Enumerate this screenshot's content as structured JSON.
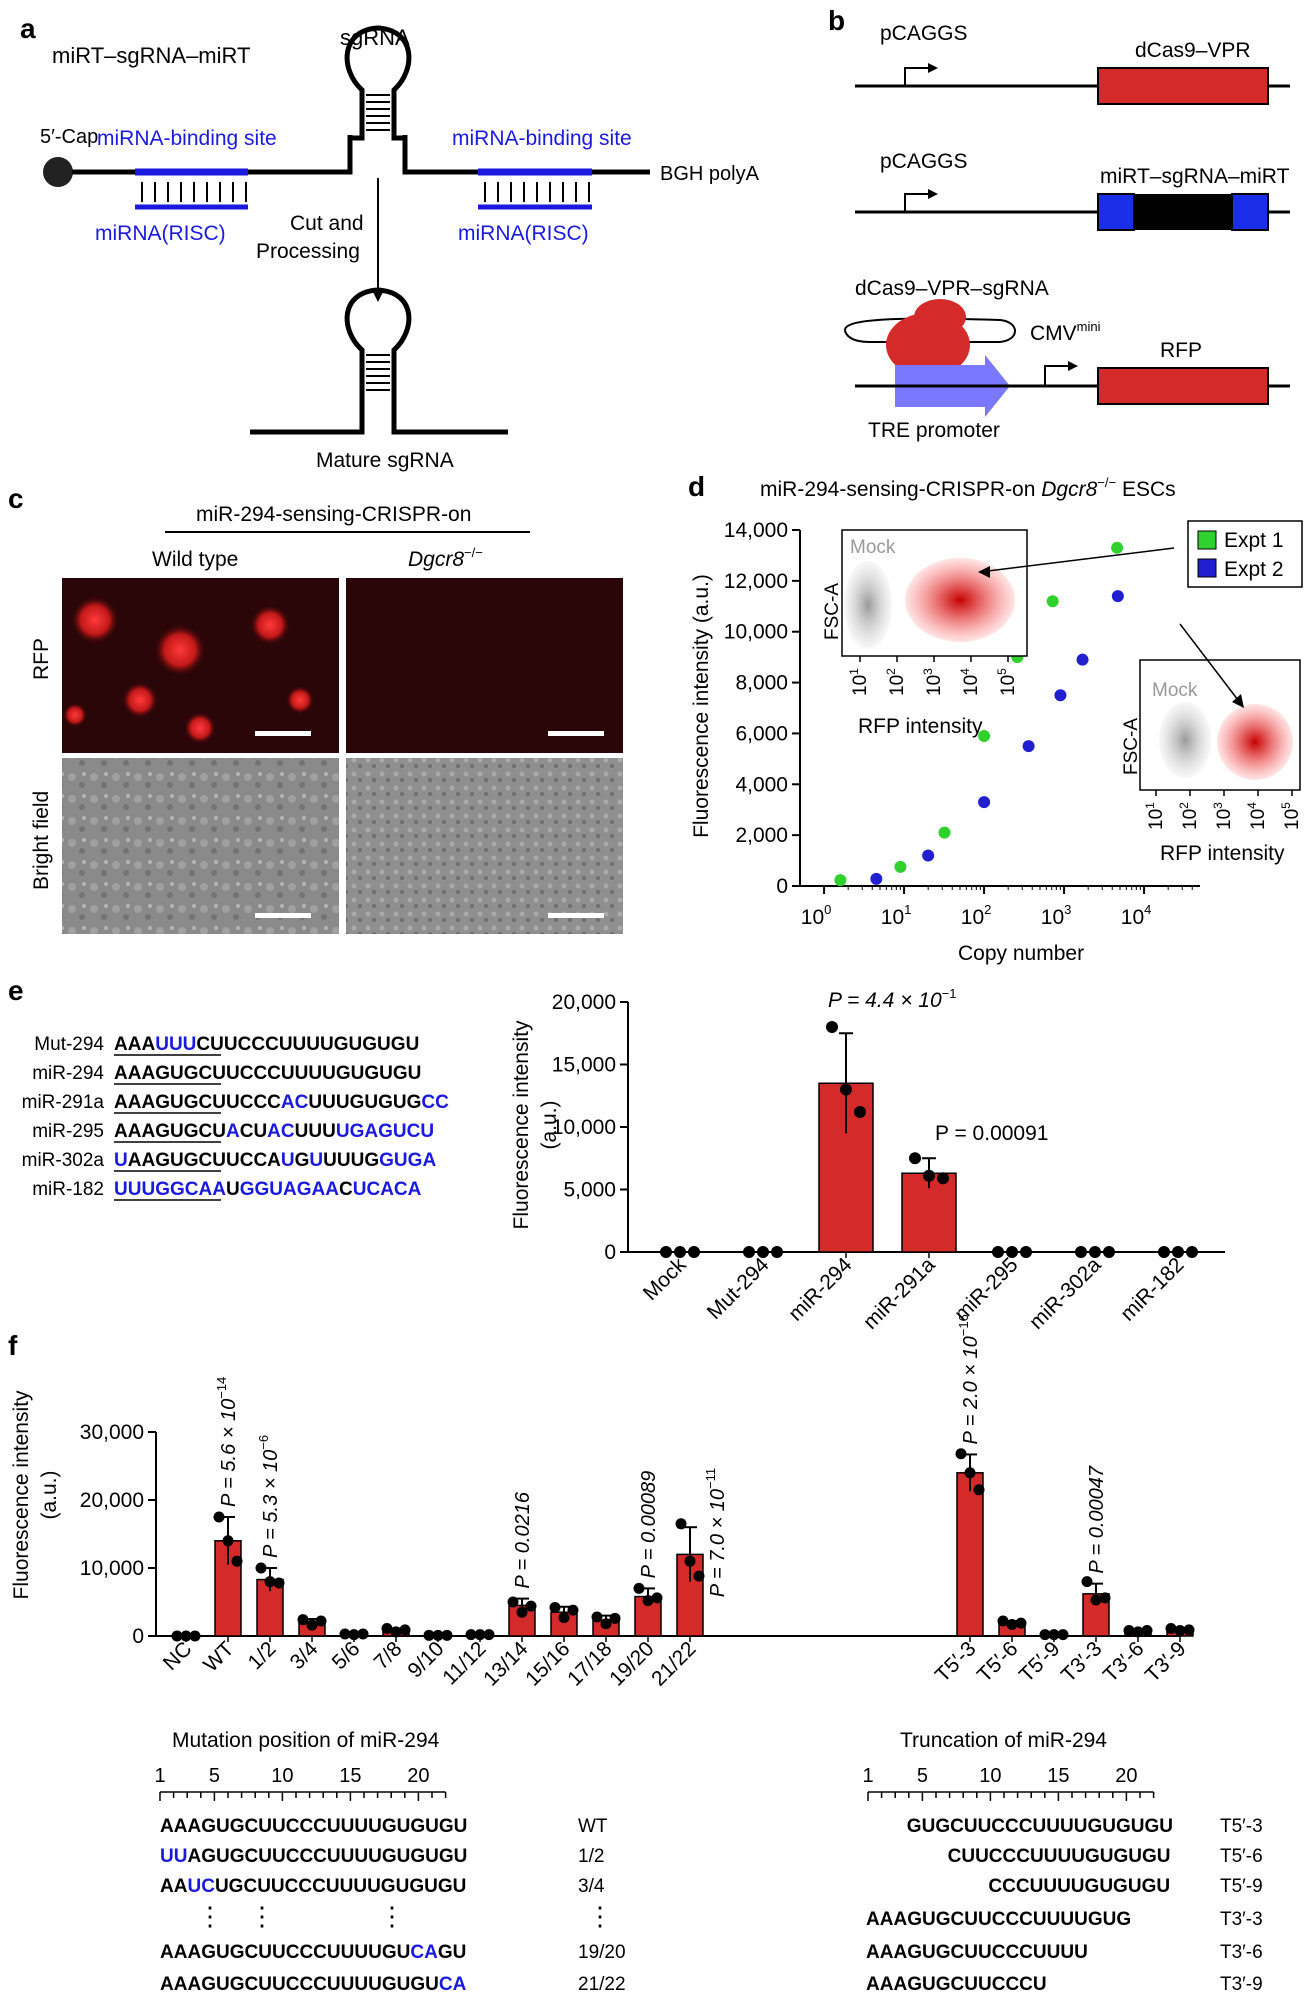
{
  "panel_labels": {
    "a": "a",
    "b": "b",
    "c": "c",
    "d": "d",
    "e": "e",
    "f": "f"
  },
  "panel_a": {
    "title": "miRT–sgRNA–miRT",
    "sgrna": "sgRNA",
    "cap": "5′-Cap",
    "site_left": "miRNA-binding site",
    "site_right": "miRNA-binding site",
    "risc_left": "miRNA(RISC)",
    "risc_right": "miRNA(RISC)",
    "polyA": "BGH polyA",
    "cut1": "Cut and",
    "cut2": "Processing",
    "mature": "Mature sgRNA",
    "colors": {
      "blue": "#1a1adf"
    }
  },
  "panel_b": {
    "p1": "pCAGGS",
    "g1": "dCas9–VPR",
    "p2": "pCAGGS",
    "g2": "miRT–sgRNA–miRT",
    "complex": "dCas9–VPR–sgRNA",
    "cmv": "CMV",
    "cmv_sup": "mini",
    "rfp": "RFP",
    "tre": "TRE promoter",
    "colors": {
      "red": "#d42a2a",
      "blue": "#1b2ee8",
      "lavender": "#7a78ff"
    }
  },
  "panel_c": {
    "header": "miR-294-sensing-CRISPR-on",
    "col1": "Wild type",
    "col2": "Dgcr8",
    "col2_sup": "−/−",
    "row1": "RFP",
    "row2": "Bright field"
  },
  "panel_d": {
    "title": "miR-294-sensing-CRISPR-on",
    "title_gene": "Dgcr8",
    "title_sup": "−/−",
    "title_tail": "ESCs",
    "ylabel": "Fluorescence intensity (a.u.)",
    "xlabel": "Copy number",
    "legend1": "Expt 1",
    "legend2": "Expt 2",
    "inset_mock": "Mock",
    "inset_ylabel": "FSC-A",
    "inset_xlabel": "RFP intensity",
    "yticks": [
      "0",
      "2,000",
      "4,000",
      "6,000",
      "8,000",
      "10,000",
      "12,000",
      "14,000"
    ],
    "xticks": [
      "10",
      "10",
      "10",
      "10",
      "10"
    ],
    "xtick_exp": [
      "0",
      "1",
      "2",
      "3",
      "4"
    ],
    "inset_ticks": [
      "10",
      "10",
      "10",
      "10",
      "10"
    ],
    "inset_exp": [
      "1",
      "2",
      "3",
      "4",
      "5"
    ]
  },
  "panel_e": {
    "ylabel1": "Fluorescence intensity",
    "ylabel2": "(a.u.)",
    "yticks": [
      "0",
      "5,000",
      "10,000",
      "15,000",
      "20,000"
    ],
    "p1": "P = 4.4 × 10",
    "p1_exp": "−1",
    "p2": "P = 0.00091",
    "categories": [
      "Mock",
      "Mut-294",
      "miR-294",
      "miR-291a",
      "miR-295",
      "miR-302a",
      "miR-182"
    ],
    "seq_names": [
      "Mut-294",
      "miR-294",
      "miR-291a",
      "miR-295",
      "miR-302a",
      "miR-182"
    ],
    "seqs": [
      [
        "AAAUUUCUUCCCUUUUGUGUGU",
        "1110001111111111111111"
      ],
      [
        "AAAGUGCUUCCCUUUUGUGUGU",
        "1111111111111111111111"
      ],
      [
        "AAAGUGCUUCCCACUUUGUGUGCC",
        "111111111111001111111100"
      ],
      [
        "AAAGUGCUACUACUUUUGAGUCU",
        "11111111011001110000000"
      ],
      [
        "UAAGUGCUUCCAUGUUUUGGUGA",
        "01111111111101011110000"
      ],
      [
        "UUUGGCAAUGGUAGAACUCACA",
        "0000000010000000100000"
      ]
    ]
  },
  "panel_f": {
    "ylabel1": "Fluorescence intensity",
    "ylabel2": "(a.u.)",
    "yticks": [
      "0",
      "10,000",
      "20,000",
      "30,000"
    ],
    "categories": [
      "NC",
      "WT",
      "1/2",
      "3/4",
      "5/6",
      "7/8",
      "9/10",
      "11/12",
      "13/14",
      "15/16",
      "17/18",
      "19/20",
      "21/22",
      "T5′-3",
      "T5′-6",
      "T5′-9",
      "T3′-3",
      "T3′-6",
      "T3′-9"
    ],
    "pvals": [
      {
        "cat": "WT",
        "text": "P = 5.6 × 10",
        "exp": "−14"
      },
      {
        "cat": "1/2",
        "text": "P = 5.3 × 10",
        "exp": "−6"
      },
      {
        "cat": "13/14",
        "text": "P = 0.0216",
        "exp": ""
      },
      {
        "cat": "19/20",
        "text": "P = 0.00089",
        "exp": ""
      },
      {
        "cat": "21/22",
        "text": "P = 7.0 × 10",
        "exp": "−11"
      },
      {
        "cat": "T5′-3",
        "text": "P = 2.0 × 10",
        "exp": "−16"
      },
      {
        "cat": "T3′-3",
        "text": "P = 0.00047",
        "exp": ""
      }
    ],
    "mut_title": "Mutation position of miR-294",
    "trunc_title": "Truncation of miR-294",
    "ruler_labels": [
      "1",
      "5",
      "10",
      "15",
      "20"
    ],
    "mut_rows": [
      {
        "seq": "AAAGUGCUUCCCUUUUGUGUGU",
        "mask": "1111111111111111111111",
        "label": "WT"
      },
      {
        "seq": "UUAGUGCUUCCCUUUUGUGUGU",
        "mask": "0011111111111111111111",
        "label": "1/2"
      },
      {
        "seq": "AAUCUGCUUCCCUUUUGUGUGU",
        "mask": "1100111111111111111111",
        "label": "3/4"
      },
      {
        "seq": "AAAGUGCUUCCCUUUUGUCAGU",
        "mask": "1111111111111111110011",
        "label": "19/20"
      },
      {
        "seq": "AAAGUGCUUCCCUUUUGUGUCA",
        "mask": "1111111111111111111100",
        "label": "21/22"
      }
    ],
    "trunc_rows": [
      {
        "seq": "GUGCUUCCCUUUUGUGUGU",
        "offset": 3,
        "label": "T5′-3"
      },
      {
        "seq": "CUUCCCUUUUGUGUGU",
        "offset": 6,
        "label": "T5′-6"
      },
      {
        "seq": "CCCUUUUGUGUGU",
        "offset": 9,
        "label": "T5′-9"
      },
      {
        "seq": "AAAGUGCUUCCCUUUUGUG",
        "offset": 0,
        "label": "T3′-3"
      },
      {
        "seq": "AAAGUGCUUCCCUUUU",
        "offset": 0,
        "label": "T3′-6"
      },
      {
        "seq": "AAAGUGCUUCCCU",
        "offset": 0,
        "label": "T3′-9"
      }
    ],
    "ellipsis": "⋮"
  },
  "chart_data": [
    {
      "type": "scatter",
      "title": "miR-294-sensing-CRISPR-on Dgcr8−/− ESCs",
      "xlabel": "Copy number",
      "ylabel": "Fluorescence intensity (a.u.)",
      "xscale": "log",
      "xlim": [
        0.5,
        50000
      ],
      "ylim": [
        0,
        14000
      ],
      "legend": "top-right",
      "series": [
        {
          "name": "Expt 1",
          "color": "#2fd12f",
          "points": [
            [
              1.6,
              230
            ],
            [
              9,
              750
            ],
            [
              32,
              2100
            ],
            [
              100,
              5900
            ],
            [
              260,
              9000
            ],
            [
              720,
              11200
            ],
            [
              4600,
              13300
            ]
          ]
        },
        {
          "name": "Expt 2",
          "color": "#2020d0",
          "points": [
            [
              4.5,
              280
            ],
            [
              20,
              1200
            ],
            [
              100,
              3300
            ],
            [
              360,
              5500
            ],
            [
              900,
              7500
            ],
            [
              1700,
              8900
            ],
            [
              4700,
              11400
            ]
          ]
        }
      ]
    },
    {
      "type": "bar",
      "ylabel": "Fluorescence intensity (a.u.)",
      "ylim": [
        0,
        20000
      ],
      "categories": [
        "Mock",
        "Mut-294",
        "miR-294",
        "miR-291a",
        "miR-295",
        "miR-302a",
        "miR-182"
      ],
      "values": [
        0,
        0,
        13500,
        6300,
        0,
        0,
        0
      ],
      "errors": [
        0,
        0,
        4000,
        1200,
        0,
        0,
        0
      ],
      "points": [
        [
          0,
          0,
          0
        ],
        [
          0,
          0,
          0
        ],
        [
          18000,
          13000,
          11200
        ],
        [
          7500,
          6100,
          5900
        ],
        [
          0,
          0,
          0
        ],
        [
          0,
          0,
          0
        ],
        [
          0,
          0,
          0
        ]
      ]
    },
    {
      "type": "bar",
      "ylabel": "Fluorescence intensity (a.u.)",
      "ylim": [
        0,
        30000
      ],
      "categories": [
        "NC",
        "WT",
        "1/2",
        "3/4",
        "5/6",
        "7/8",
        "9/10",
        "11/12",
        "13/14",
        "15/16",
        "17/18",
        "19/20",
        "21/22",
        "T5′-3",
        "T5′-6",
        "T5′-9",
        "T3′-3",
        "T3′-6",
        "T3′-9"
      ],
      "values": [
        0,
        14000,
        8300,
        2000,
        300,
        800,
        100,
        200,
        4500,
        3500,
        2300,
        5800,
        12000,
        24000,
        1900,
        200,
        6200,
        700,
        900
      ],
      "errors": [
        0,
        3500,
        1700,
        500,
        100,
        300,
        50,
        100,
        1000,
        800,
        700,
        1200,
        4000,
        2700,
        300,
        100,
        1500,
        200,
        200
      ],
      "points": [
        [
          0,
          0,
          0
        ],
        [
          17500,
          14000,
          11000
        ],
        [
          10000,
          8000,
          7800
        ],
        [
          2400,
          1600,
          2200
        ],
        [
          300,
          200,
          300
        ],
        [
          1100,
          600,
          900
        ],
        [
          100,
          100,
          100
        ],
        [
          200,
          200,
          200
        ],
        [
          5000,
          3500,
          4400
        ],
        [
          4200,
          2700,
          3800
        ],
        [
          2800,
          1800,
          2600
        ],
        [
          7000,
          5200,
          5600
        ],
        [
          16500,
          11000,
          8800
        ],
        [
          26800,
          24000,
          21500
        ],
        [
          2200,
          1700,
          1900
        ],
        [
          200,
          200,
          200
        ],
        [
          8000,
          5300,
          5600
        ],
        [
          800,
          600,
          800
        ],
        [
          1100,
          800,
          900
        ]
      ]
    }
  ]
}
